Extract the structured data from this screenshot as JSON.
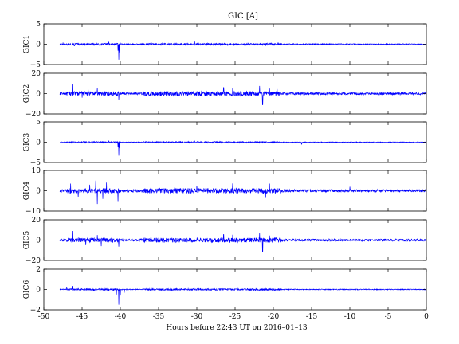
{
  "chart_data": {
    "type": "line",
    "title": "GIC [A]",
    "xlabel": "Hours before  22:43 UT on 2016–01–13",
    "xlim": [
      -50,
      0
    ],
    "x_ticks": [
      "-50",
      "-45",
      "-40",
      "-35",
      "-30",
      "-25",
      "-20",
      "-15",
      "-10",
      "-5",
      "0"
    ],
    "x_tick_values": [
      -50,
      -45,
      -40,
      -35,
      -30,
      -25,
      -20,
      -15,
      -10,
      -5,
      0
    ],
    "grid": false,
    "line_color": "#0000ff",
    "x_start": -47.9,
    "x_end": 0,
    "panels": [
      {
        "ylabel": "GIC1",
        "ylim": [
          -5,
          5
        ],
        "y_ticks": [
          "5",
          "0",
          "−5"
        ],
        "y_tick_values": [
          5,
          0,
          -5
        ],
        "noise": 0.18,
        "baseline": 0,
        "features": [
          {
            "x": -47.5,
            "y": 0.4
          },
          {
            "x": -46.0,
            "y": -0.4
          },
          {
            "x": -41.5,
            "y": 0.6
          },
          {
            "x": -40.3,
            "y": -1.6
          },
          {
            "x": -40.2,
            "y": -3.8
          },
          {
            "x": -40.1,
            "y": -2.0
          },
          {
            "x": -40.0,
            "y": 0.3
          },
          {
            "x": -30.3,
            "y": 0.6
          },
          {
            "x": -21.0,
            "y": -0.4
          }
        ]
      },
      {
        "ylabel": "GIC2",
        "ylim": [
          -20,
          20
        ],
        "y_ticks": [
          "20",
          "0",
          "−20"
        ],
        "y_tick_values": [
          20,
          0,
          -20
        ],
        "noise": 1.6,
        "baseline": 0,
        "features": [
          {
            "x": -46.3,
            "y": 9.5
          },
          {
            "x": -45.0,
            "y": -4.0
          },
          {
            "x": -44.2,
            "y": 4.5
          },
          {
            "x": -43.0,
            "y": 5.5
          },
          {
            "x": -40.2,
            "y": -6.0
          },
          {
            "x": -36.0,
            "y": 4.0
          },
          {
            "x": -26.5,
            "y": 6.0
          },
          {
            "x": -25.3,
            "y": 5.5
          },
          {
            "x": -21.8,
            "y": 7.5
          },
          {
            "x": -21.4,
            "y": -11.0
          },
          {
            "x": -20.5,
            "y": 5.0
          },
          {
            "x": -19.5,
            "y": 4.5
          }
        ]
      },
      {
        "ylabel": "GIC3",
        "ylim": [
          -5,
          5
        ],
        "y_ticks": [
          "5",
          "0",
          "−5"
        ],
        "y_tick_values": [
          5,
          0,
          -5
        ],
        "noise": 0.12,
        "baseline": 0,
        "features": [
          {
            "x": -41.5,
            "y": 0.3
          },
          {
            "x": -40.3,
            "y": -1.2
          },
          {
            "x": -40.2,
            "y": -3.3
          },
          {
            "x": -40.1,
            "y": -1.5
          },
          {
            "x": -30.3,
            "y": 0.3
          },
          {
            "x": -16.3,
            "y": -0.5
          }
        ]
      },
      {
        "ylabel": "GIC4",
        "ylim": [
          -10,
          10
        ],
        "y_ticks": [
          "10",
          "0",
          "−10"
        ],
        "y_tick_values": [
          10,
          0,
          -10
        ],
        "noise": 0.9,
        "baseline": 0,
        "features": [
          {
            "x": -46.5,
            "y": 3.5
          },
          {
            "x": -45.5,
            "y": -3.0
          },
          {
            "x": -44.0,
            "y": 3.0
          },
          {
            "x": -43.2,
            "y": 5.0
          },
          {
            "x": -43.0,
            "y": -6.5
          },
          {
            "x": -42.3,
            "y": -4.0
          },
          {
            "x": -41.8,
            "y": 4.0
          },
          {
            "x": -40.3,
            "y": -5.5
          },
          {
            "x": -36.0,
            "y": 2.5
          },
          {
            "x": -30.0,
            "y": 2.5
          },
          {
            "x": -25.3,
            "y": 3.5
          },
          {
            "x": -21.0,
            "y": -3.5
          },
          {
            "x": -20.5,
            "y": 3.5
          },
          {
            "x": -10.0,
            "y": 2.0
          }
        ]
      },
      {
        "ylabel": "GIC5",
        "ylim": [
          -20,
          20
        ],
        "y_ticks": [
          "20",
          "0",
          "−20"
        ],
        "y_tick_values": [
          20,
          0,
          -20
        ],
        "noise": 1.6,
        "baseline": 0,
        "features": [
          {
            "x": -46.3,
            "y": 9.0
          },
          {
            "x": -44.5,
            "y": -5.0
          },
          {
            "x": -43.0,
            "y": 5.0
          },
          {
            "x": -42.5,
            "y": -6.0
          },
          {
            "x": -40.2,
            "y": -6.5
          },
          {
            "x": -36.0,
            "y": 4.0
          },
          {
            "x": -26.5,
            "y": 5.5
          },
          {
            "x": -25.3,
            "y": 5.0
          },
          {
            "x": -21.8,
            "y": 7.0
          },
          {
            "x": -21.4,
            "y": -11.5
          },
          {
            "x": -20.5,
            "y": 4.5
          }
        ]
      },
      {
        "ylabel": "GIC6",
        "ylim": [
          -2,
          2
        ],
        "y_ticks": [
          "2",
          "0",
          "−2"
        ],
        "y_tick_values": [
          2,
          0,
          -2
        ],
        "noise": 0.06,
        "baseline": 0,
        "features": [
          {
            "x": -47.0,
            "y": 0.2
          },
          {
            "x": -46.3,
            "y": 0.35
          },
          {
            "x": -45.5,
            "y": 0.1
          },
          {
            "x": -40.5,
            "y": -0.5
          },
          {
            "x": -40.2,
            "y": -1.5
          },
          {
            "x": -40.0,
            "y": -0.6
          },
          {
            "x": -39.5,
            "y": -0.3
          }
        ]
      }
    ]
  }
}
